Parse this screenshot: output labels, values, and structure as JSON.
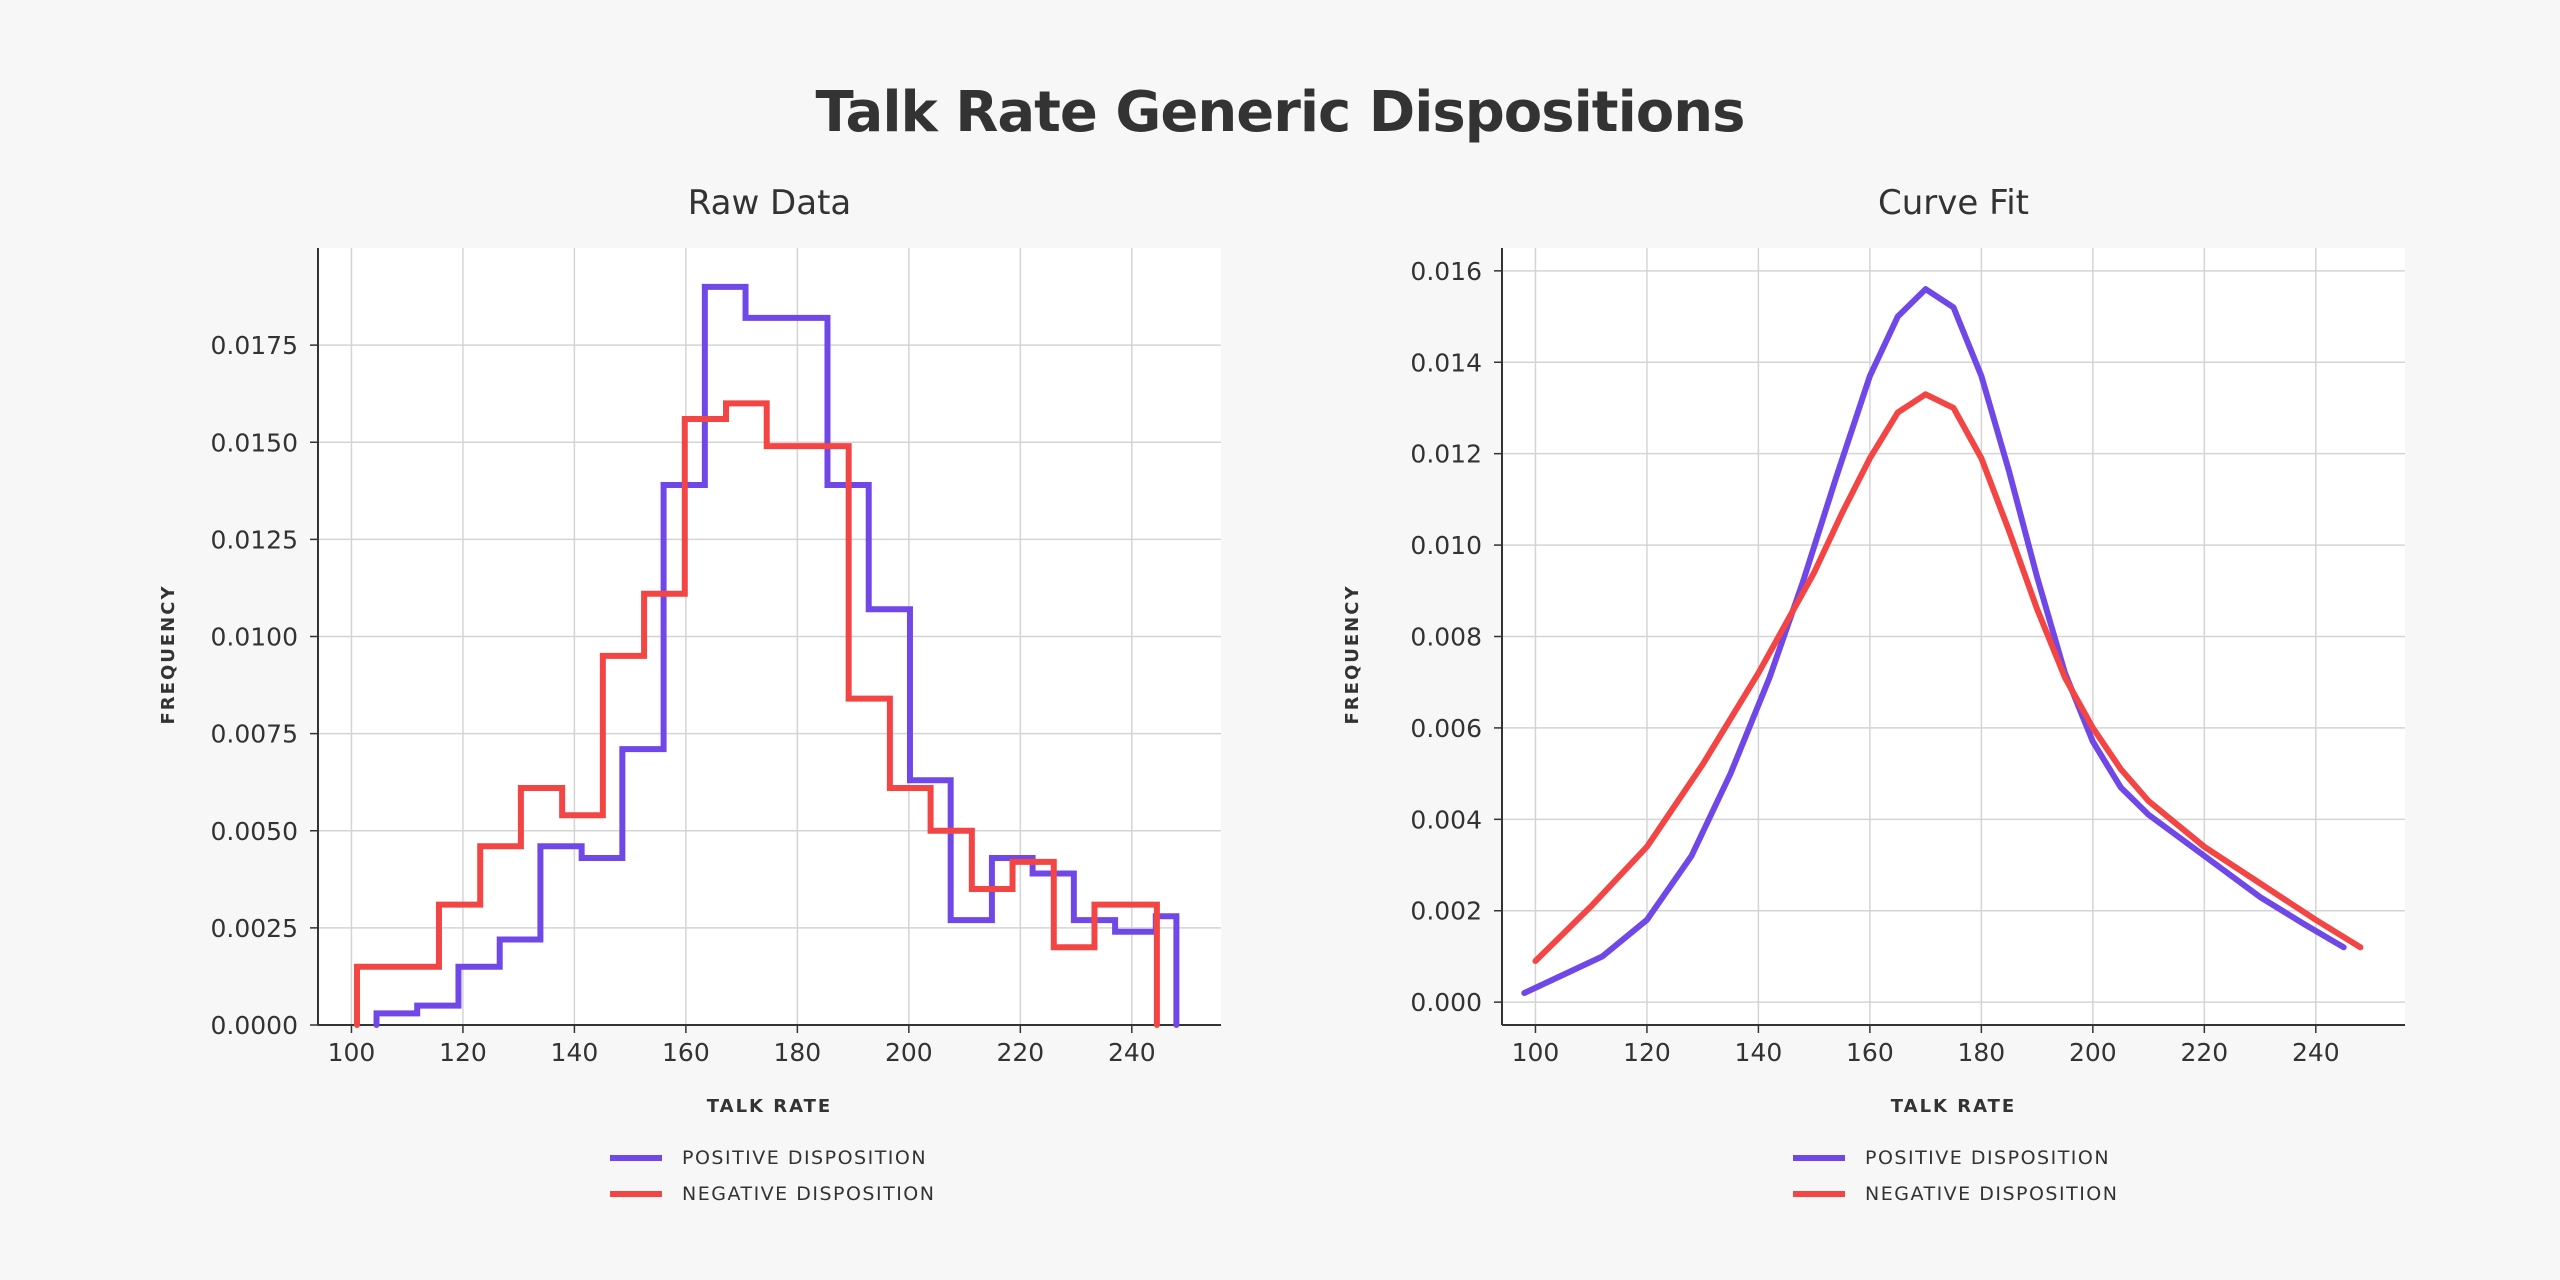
{
  "title": "Talk Rate Generic Dispositions",
  "colors": {
    "positive": "#7048e8",
    "negative": "#f44545",
    "grid": "#d4d4d4",
    "axis": "#333333",
    "background": "#f7f7f7",
    "plot_bg": "#ffffff"
  },
  "legend": {
    "positive_label": "POSITIVE DISPOSITION",
    "negative_label": "NEGATIVE DISPOSITION"
  },
  "chart_data": [
    {
      "type": "line",
      "title": "Raw Data",
      "xlabel": "TALK RATE",
      "ylabel": "FREQUENCY",
      "xlim": [
        94,
        256
      ],
      "ylim": [
        0,
        0.02
      ],
      "xticks": [
        "100",
        "120",
        "140",
        "160",
        "180",
        "200",
        "220",
        "240"
      ],
      "yticks": [
        "0.0000",
        "0.0025",
        "0.0050",
        "0.0075",
        "0.0100",
        "0.0125",
        "0.0150",
        "0.0175"
      ],
      "grid": true,
      "legend_position": "bottom-center",
      "series": [
        {
          "name": "POSITIVE DISPOSITION",
          "drawstyle": "steps",
          "x": [
            104.5,
            111.8,
            119.2,
            126.6,
            133.9,
            141.3,
            148.6,
            156.0,
            163.4,
            170.7,
            178.1,
            185.4,
            192.8,
            200.2,
            207.5,
            214.9,
            222.2,
            229.6,
            237.0,
            244.3,
            248.0
          ],
          "y": [
            0.0003,
            0.0005,
            0.0015,
            0.0022,
            0.0046,
            0.0043,
            0.0071,
            0.0139,
            0.019,
            0.0182,
            0.0182,
            0.0139,
            0.0107,
            0.0063,
            0.0027,
            0.0043,
            0.0039,
            0.0027,
            0.0024,
            0.0028,
            0.0
          ]
        },
        {
          "name": "NEGATIVE DISPOSITION",
          "drawstyle": "steps",
          "x": [
            101.0,
            108.4,
            115.7,
            123.1,
            130.4,
            137.8,
            145.1,
            152.5,
            159.8,
            167.2,
            174.5,
            181.9,
            189.2,
            196.6,
            203.9,
            211.3,
            218.6,
            226.0,
            233.3,
            240.7,
            244.5
          ],
          "y": [
            0.0015,
            0.0015,
            0.0031,
            0.0046,
            0.0061,
            0.0054,
            0.0095,
            0.0111,
            0.0156,
            0.016,
            0.0149,
            0.0149,
            0.0084,
            0.0061,
            0.005,
            0.0035,
            0.0042,
            0.002,
            0.0031,
            0.0031,
            0.0
          ]
        }
      ]
    },
    {
      "type": "line",
      "title": "Curve Fit",
      "xlabel": "TALK RATE",
      "ylabel": "FREQUENCY",
      "xlim": [
        94,
        256
      ],
      "ylim": [
        -0.0005,
        0.0165
      ],
      "xticks": [
        "100",
        "120",
        "140",
        "160",
        "180",
        "200",
        "220",
        "240"
      ],
      "yticks": [
        "0.000",
        "0.002",
        "0.004",
        "0.006",
        "0.008",
        "0.010",
        "0.012",
        "0.014",
        "0.016"
      ],
      "grid": true,
      "legend_position": "bottom-center",
      "series": [
        {
          "name": "POSITIVE DISPOSITION",
          "x": [
            98,
            105,
            112,
            120,
            128,
            135,
            142,
            148,
            154,
            160,
            165,
            170,
            175,
            180,
            185,
            190,
            195,
            200,
            205,
            210,
            220,
            230,
            238,
            245
          ],
          "y": [
            0.0002,
            0.0006,
            0.001,
            0.0018,
            0.0032,
            0.005,
            0.0071,
            0.0092,
            0.0115,
            0.0137,
            0.015,
            0.0156,
            0.0152,
            0.0137,
            0.0116,
            0.0093,
            0.0072,
            0.0057,
            0.0047,
            0.0041,
            0.0032,
            0.0023,
            0.0017,
            0.0012
          ]
        },
        {
          "name": "NEGATIVE DISPOSITION",
          "x": [
            100,
            105,
            110,
            120,
            130,
            140,
            150,
            155,
            160,
            165,
            170,
            175,
            180,
            185,
            190,
            195,
            200,
            205,
            210,
            220,
            230,
            240,
            248
          ],
          "y": [
            0.0009,
            0.0015,
            0.0021,
            0.0034,
            0.0052,
            0.0072,
            0.0094,
            0.0107,
            0.0119,
            0.0129,
            0.0133,
            0.013,
            0.0119,
            0.0103,
            0.0086,
            0.0071,
            0.006,
            0.0051,
            0.0044,
            0.0034,
            0.0026,
            0.0018,
            0.0012
          ]
        }
      ]
    }
  ]
}
